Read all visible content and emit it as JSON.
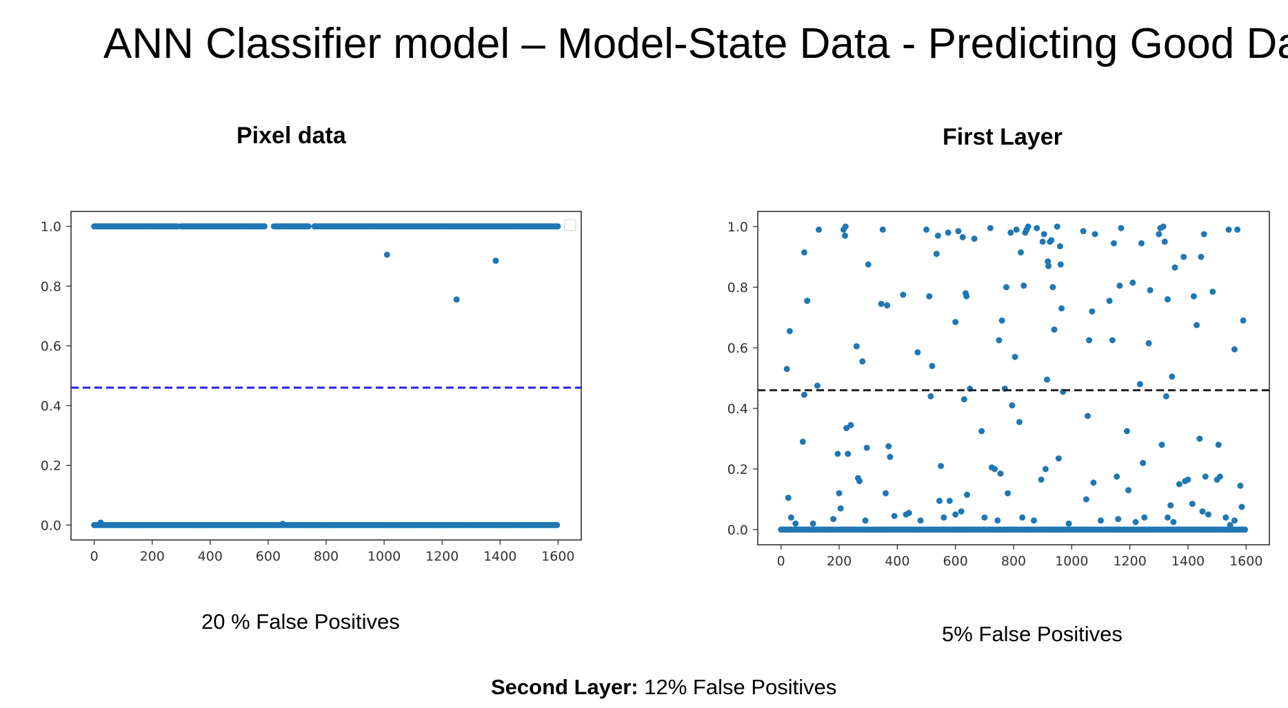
{
  "slide": {
    "title": "ANN Classifier model – Model-State Data - Predicting Good Data",
    "footer_bold": "Second Layer:",
    "footer_text": " 12% False Positives"
  },
  "chart_data": [
    {
      "type": "scatter",
      "title": "Pixel data",
      "caption": "20 % False Positives",
      "xlim": [
        -80,
        1680
      ],
      "ylim": [
        -0.05,
        1.05
      ],
      "xticks": [
        0,
        200,
        400,
        600,
        800,
        1000,
        1200,
        1400,
        1600
      ],
      "yticks": [
        0.0,
        0.2,
        0.4,
        0.6,
        0.8,
        1.0
      ],
      "threshold": 0.46,
      "threshold_color": "#1f1fff",
      "point_color": "#1f77b4",
      "legend": "top-right (empty)",
      "grid": false,
      "dense_bands": [
        {
          "y": 1.0,
          "x_segments": [
            [
              0,
              290
            ],
            [
              300,
              590
            ],
            [
              620,
              740
            ],
            [
              760,
              1020
            ],
            [
              1025,
              1600
            ]
          ]
        },
        {
          "y": 0.0,
          "x_segments": [
            [
              0,
              1600
            ]
          ]
        }
      ],
      "points": [
        {
          "x": 1010,
          "y": 0.905
        },
        {
          "x": 1250,
          "y": 0.755
        },
        {
          "x": 1385,
          "y": 0.885
        },
        {
          "x": 22,
          "y": 0.008
        },
        {
          "x": 650,
          "y": 0.004
        }
      ]
    },
    {
      "type": "scatter",
      "title": "First Layer",
      "caption": "5% False Positives",
      "xlim": [
        -80,
        1680
      ],
      "ylim": [
        -0.05,
        1.05
      ],
      "xticks": [
        0,
        200,
        400,
        600,
        800,
        1000,
        1200,
        1400,
        1600
      ],
      "yticks": [
        0.0,
        0.2,
        0.4,
        0.6,
        0.8,
        1.0
      ],
      "threshold": 0.46,
      "threshold_color": "#222222",
      "point_color": "#1f77b4",
      "grid": false,
      "dense_bands": [
        {
          "y": 0.0,
          "x_segments": [
            [
              0,
              1600
            ]
          ]
        }
      ],
      "points": [
        {
          "x": 20,
          "y": 0.53
        },
        {
          "x": 30,
          "y": 0.655
        },
        {
          "x": 25,
          "y": 0.105
        },
        {
          "x": 50,
          "y": 0.02
        },
        {
          "x": 80,
          "y": 0.915
        },
        {
          "x": 90,
          "y": 0.755
        },
        {
          "x": 80,
          "y": 0.445
        },
        {
          "x": 75,
          "y": 0.29
        },
        {
          "x": 130,
          "y": 0.99
        },
        {
          "x": 125,
          "y": 0.475
        },
        {
          "x": 195,
          "y": 0.25
        },
        {
          "x": 200,
          "y": 0.12
        },
        {
          "x": 205,
          "y": 0.07
        },
        {
          "x": 215,
          "y": 0.99
        },
        {
          "x": 220,
          "y": 0.97
        },
        {
          "x": 222,
          "y": 1.0
        },
        {
          "x": 225,
          "y": 0.335
        },
        {
          "x": 230,
          "y": 0.25
        },
        {
          "x": 240,
          "y": 0.345
        },
        {
          "x": 260,
          "y": 0.605
        },
        {
          "x": 265,
          "y": 0.17
        },
        {
          "x": 270,
          "y": 0.16
        },
        {
          "x": 280,
          "y": 0.555
        },
        {
          "x": 295,
          "y": 0.27
        },
        {
          "x": 300,
          "y": 0.875
        },
        {
          "x": 345,
          "y": 0.745
        },
        {
          "x": 350,
          "y": 0.99
        },
        {
          "x": 365,
          "y": 0.74
        },
        {
          "x": 360,
          "y": 0.12
        },
        {
          "x": 370,
          "y": 0.275
        },
        {
          "x": 375,
          "y": 0.24
        },
        {
          "x": 420,
          "y": 0.775
        },
        {
          "x": 440,
          "y": 0.055
        },
        {
          "x": 470,
          "y": 0.585
        },
        {
          "x": 500,
          "y": 0.99
        },
        {
          "x": 510,
          "y": 0.77
        },
        {
          "x": 515,
          "y": 0.44
        },
        {
          "x": 520,
          "y": 0.54
        },
        {
          "x": 535,
          "y": 0.91
        },
        {
          "x": 540,
          "y": 0.97
        },
        {
          "x": 545,
          "y": 0.095
        },
        {
          "x": 550,
          "y": 0.21
        },
        {
          "x": 575,
          "y": 0.98
        },
        {
          "x": 580,
          "y": 0.095
        },
        {
          "x": 600,
          "y": 0.685
        },
        {
          "x": 610,
          "y": 0.985
        },
        {
          "x": 625,
          "y": 0.965
        },
        {
          "x": 630,
          "y": 0.43
        },
        {
          "x": 635,
          "y": 0.78
        },
        {
          "x": 638,
          "y": 0.77
        },
        {
          "x": 640,
          "y": 0.115
        },
        {
          "x": 650,
          "y": 0.465
        },
        {
          "x": 665,
          "y": 0.96
        },
        {
          "x": 690,
          "y": 0.325
        },
        {
          "x": 720,
          "y": 0.995
        },
        {
          "x": 725,
          "y": 0.205
        },
        {
          "x": 735,
          "y": 0.2
        },
        {
          "x": 750,
          "y": 0.625
        },
        {
          "x": 755,
          "y": 0.185
        },
        {
          "x": 760,
          "y": 0.69
        },
        {
          "x": 770,
          "y": 0.465
        },
        {
          "x": 775,
          "y": 0.8
        },
        {
          "x": 780,
          "y": 0.12
        },
        {
          "x": 790,
          "y": 0.98
        },
        {
          "x": 795,
          "y": 0.41
        },
        {
          "x": 805,
          "y": 0.57
        },
        {
          "x": 810,
          "y": 0.99
        },
        {
          "x": 820,
          "y": 0.355
        },
        {
          "x": 825,
          "y": 0.915
        },
        {
          "x": 835,
          "y": 0.805
        },
        {
          "x": 840,
          "y": 0.98
        },
        {
          "x": 845,
          "y": 0.99
        },
        {
          "x": 850,
          "y": 1.0
        },
        {
          "x": 880,
          "y": 0.995
        },
        {
          "x": 895,
          "y": 0.165
        },
        {
          "x": 900,
          "y": 0.95
        },
        {
          "x": 905,
          "y": 0.975
        },
        {
          "x": 910,
          "y": 0.2
        },
        {
          "x": 915,
          "y": 0.495
        },
        {
          "x": 918,
          "y": 0.885
        },
        {
          "x": 920,
          "y": 0.87
        },
        {
          "x": 925,
          "y": 0.95
        },
        {
          "x": 930,
          "y": 0.955
        },
        {
          "x": 935,
          "y": 0.8
        },
        {
          "x": 940,
          "y": 0.66
        },
        {
          "x": 950,
          "y": 1.0
        },
        {
          "x": 955,
          "y": 0.235
        },
        {
          "x": 960,
          "y": 0.935
        },
        {
          "x": 962,
          "y": 0.875
        },
        {
          "x": 965,
          "y": 0.73
        },
        {
          "x": 970,
          "y": 0.455
        },
        {
          "x": 1040,
          "y": 0.985
        },
        {
          "x": 1055,
          "y": 0.375
        },
        {
          "x": 1060,
          "y": 0.625
        },
        {
          "x": 1070,
          "y": 0.72
        },
        {
          "x": 1080,
          "y": 0.975
        },
        {
          "x": 1075,
          "y": 0.155
        },
        {
          "x": 1130,
          "y": 0.755
        },
        {
          "x": 1140,
          "y": 0.625
        },
        {
          "x": 1145,
          "y": 0.945
        },
        {
          "x": 1155,
          "y": 0.175
        },
        {
          "x": 1165,
          "y": 0.805
        },
        {
          "x": 1170,
          "y": 0.995
        },
        {
          "x": 1190,
          "y": 0.325
        },
        {
          "x": 1195,
          "y": 0.13
        },
        {
          "x": 1210,
          "y": 0.815
        },
        {
          "x": 1235,
          "y": 0.48
        },
        {
          "x": 1240,
          "y": 0.945
        },
        {
          "x": 1245,
          "y": 0.22
        },
        {
          "x": 1265,
          "y": 0.615
        },
        {
          "x": 1270,
          "y": 0.79
        },
        {
          "x": 1300,
          "y": 0.975
        },
        {
          "x": 1305,
          "y": 0.995
        },
        {
          "x": 1310,
          "y": 0.28
        },
        {
          "x": 1315,
          "y": 1.0
        },
        {
          "x": 1320,
          "y": 0.95
        },
        {
          "x": 1325,
          "y": 0.44
        },
        {
          "x": 1330,
          "y": 0.76
        },
        {
          "x": 1340,
          "y": 0.08
        },
        {
          "x": 1345,
          "y": 0.505
        },
        {
          "x": 1355,
          "y": 0.865
        },
        {
          "x": 1370,
          "y": 0.15
        },
        {
          "x": 1385,
          "y": 0.9
        },
        {
          "x": 1390,
          "y": 0.16
        },
        {
          "x": 1400,
          "y": 0.165
        },
        {
          "x": 1420,
          "y": 0.77
        },
        {
          "x": 1430,
          "y": 0.675
        },
        {
          "x": 1440,
          "y": 0.3
        },
        {
          "x": 1445,
          "y": 0.9
        },
        {
          "x": 1455,
          "y": 0.975
        },
        {
          "x": 1460,
          "y": 0.175
        },
        {
          "x": 1485,
          "y": 0.785
        },
        {
          "x": 1500,
          "y": 0.165
        },
        {
          "x": 1505,
          "y": 0.28
        },
        {
          "x": 1510,
          "y": 0.175
        },
        {
          "x": 1540,
          "y": 0.99
        },
        {
          "x": 1545,
          "y": 0.015
        },
        {
          "x": 1560,
          "y": 0.595
        },
        {
          "x": 1570,
          "y": 0.99
        },
        {
          "x": 1580,
          "y": 0.145
        },
        {
          "x": 1585,
          "y": 0.075
        },
        {
          "x": 1590,
          "y": 0.69
        },
        {
          "x": 35,
          "y": 0.04
        },
        {
          "x": 110,
          "y": 0.02
        },
        {
          "x": 180,
          "y": 0.035
        },
        {
          "x": 290,
          "y": 0.03
        },
        {
          "x": 390,
          "y": 0.045
        },
        {
          "x": 430,
          "y": 0.05
        },
        {
          "x": 480,
          "y": 0.03
        },
        {
          "x": 560,
          "y": 0.04
        },
        {
          "x": 600,
          "y": 0.05
        },
        {
          "x": 620,
          "y": 0.06
        },
        {
          "x": 700,
          "y": 0.04
        },
        {
          "x": 745,
          "y": 0.03
        },
        {
          "x": 830,
          "y": 0.04
        },
        {
          "x": 870,
          "y": 0.03
        },
        {
          "x": 990,
          "y": 0.02
        },
        {
          "x": 1050,
          "y": 0.1
        },
        {
          "x": 1100,
          "y": 0.03
        },
        {
          "x": 1160,
          "y": 0.035
        },
        {
          "x": 1220,
          "y": 0.025
        },
        {
          "x": 1250,
          "y": 0.04
        },
        {
          "x": 1330,
          "y": 0.04
        },
        {
          "x": 1350,
          "y": 0.025
        },
        {
          "x": 1415,
          "y": 0.085
        },
        {
          "x": 1450,
          "y": 0.06
        },
        {
          "x": 1470,
          "y": 0.05
        },
        {
          "x": 1530,
          "y": 0.04
        },
        {
          "x": 1560,
          "y": 0.03
        }
      ]
    }
  ]
}
